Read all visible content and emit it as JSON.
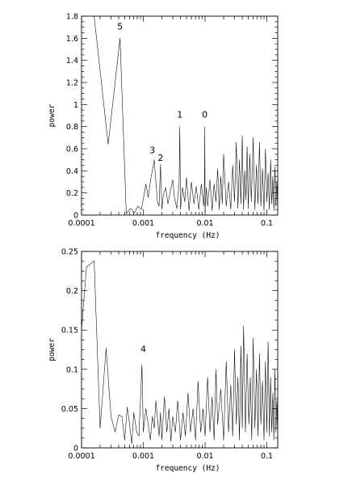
{
  "chart_data": [
    {
      "type": "line",
      "xlabel": "frequency (Hz)",
      "ylabel": "power",
      "xscale": "log",
      "xlim": [
        0.0001,
        0.15
      ],
      "ylim": [
        0,
        1.8
      ],
      "xtick_labels": [
        "0.0001",
        "0.001",
        "0.01",
        "0.1"
      ],
      "ytick_labels": [
        "0",
        "0.2",
        "0.4",
        "0.6",
        "0.8",
        "1",
        "1.2",
        "1.4",
        "1.6",
        "1.8"
      ],
      "grid": false,
      "annotations": [
        {
          "text": "5",
          "x": 0.00042,
          "y": 1.68
        },
        {
          "text": "3",
          "x": 0.0014,
          "y": 0.56
        },
        {
          "text": "2",
          "x": 0.0019,
          "y": 0.49
        },
        {
          "text": "1",
          "x": 0.0039,
          "y": 0.88
        },
        {
          "text": "0",
          "x": 0.0099,
          "y": 0.88
        }
      ],
      "series": [
        {
          "x": [
            0.00016,
            0.00027,
            0.00042,
            0.00053,
            0.00062,
            0.00072,
            0.00082,
            0.00093,
            0.0011,
            0.0012,
            0.0013,
            0.0015,
            0.0016,
            0.0017,
            0.0018,
            0.0019,
            0.002,
            0.0021,
            0.0023,
            0.0025,
            0.0027,
            0.003,
            0.0032,
            0.0035,
            0.0038,
            0.0039,
            0.004,
            0.0043,
            0.0047,
            0.005,
            0.0055,
            0.006,
            0.0066,
            0.0072,
            0.0079,
            0.0087,
            0.0095,
            0.0098,
            0.0099,
            0.01,
            0.0105,
            0.011,
            0.012,
            0.013,
            0.014,
            0.015,
            0.016,
            0.017,
            0.018,
            0.019,
            0.02,
            0.022,
            0.024,
            0.026,
            0.028,
            0.03,
            0.032,
            0.034,
            0.036,
            0.038,
            0.04,
            0.042,
            0.044,
            0.046,
            0.048,
            0.05,
            0.053,
            0.056,
            0.06,
            0.064,
            0.068,
            0.072,
            0.076,
            0.08,
            0.085,
            0.09,
            0.095,
            0.1,
            0.105,
            0.11,
            0.115,
            0.12,
            0.125,
            0.13,
            0.135,
            0.14,
            0.145,
            0.15
          ],
          "y": [
            1.8,
            0.64,
            1.6,
            0.01,
            0.06,
            0.02,
            0.08,
            0.05,
            0.28,
            0.16,
            0.3,
            0.5,
            0.3,
            0.12,
            0.08,
            0.46,
            0.05,
            0.18,
            0.25,
            0.1,
            0.2,
            0.32,
            0.15,
            0.06,
            0.3,
            0.8,
            0.05,
            0.25,
            0.12,
            0.34,
            0.04,
            0.3,
            0.1,
            0.26,
            0.05,
            0.28,
            0.08,
            0.3,
            0.8,
            0.03,
            0.25,
            0.08,
            0.32,
            0.04,
            0.28,
            0.12,
            0.42,
            0.05,
            0.35,
            0.1,
            0.55,
            0.08,
            0.3,
            0.05,
            0.45,
            0.12,
            0.66,
            0.06,
            0.5,
            0.1,
            0.72,
            0.05,
            0.4,
            0.14,
            0.62,
            0.06,
            0.55,
            0.12,
            0.7,
            0.05,
            0.45,
            0.1,
            0.66,
            0.08,
            0.42,
            0.04,
            0.6,
            0.12,
            0.38,
            0.05,
            0.5,
            0.1,
            0.35,
            0.04,
            0.44,
            0.08,
            0.3,
            0.05
          ]
        }
      ]
    },
    {
      "type": "line",
      "xlabel": "frequency (Hz)",
      "ylabel": "power",
      "xscale": "log",
      "xlim": [
        0.0001,
        0.15
      ],
      "ylim": [
        0,
        0.25
      ],
      "xtick_labels": [
        "0.0001",
        "0.001",
        "0.01",
        "0.1"
      ],
      "ytick_labels": [
        "0",
        "0.05",
        "0.1",
        "0.15",
        "0.2",
        "0.25"
      ],
      "grid": false,
      "annotations": [
        {
          "text": "4",
          "x": 0.001,
          "y": 0.122
        }
      ],
      "series": [
        {
          "x": [
            0.0001,
            0.00012,
            0.00016,
            0.0002,
            0.00025,
            0.0003,
            0.00035,
            0.0004,
            0.00045,
            0.0005,
            0.00055,
            0.0006,
            0.00065,
            0.0007,
            0.00078,
            0.00085,
            0.00095,
            0.001,
            0.0011,
            0.0012,
            0.0013,
            0.0014,
            0.0015,
            0.0016,
            0.0018,
            0.0019,
            0.002,
            0.0022,
            0.0024,
            0.0026,
            0.0028,
            0.003,
            0.0033,
            0.0036,
            0.004,
            0.0044,
            0.0048,
            0.0053,
            0.0058,
            0.0064,
            0.007,
            0.0077,
            0.0085,
            0.0093,
            0.01,
            0.011,
            0.012,
            0.013,
            0.014,
            0.015,
            0.016,
            0.018,
            0.02,
            0.022,
            0.024,
            0.026,
            0.028,
            0.03,
            0.032,
            0.034,
            0.036,
            0.038,
            0.04,
            0.042,
            0.045,
            0.048,
            0.051,
            0.054,
            0.057,
            0.06,
            0.064,
            0.068,
            0.072,
            0.076,
            0.08,
            0.085,
            0.09,
            0.095,
            0.1,
            0.105,
            0.11,
            0.115,
            0.12,
            0.125,
            0.13,
            0.135,
            0.14,
            0.145,
            0.15
          ],
          "y": [
            0.15,
            0.23,
            0.238,
            0.025,
            0.127,
            0.04,
            0.02,
            0.042,
            0.04,
            0.01,
            0.052,
            0.03,
            0.005,
            0.045,
            0.02,
            0.015,
            0.106,
            0.02,
            0.05,
            0.03,
            0.01,
            0.04,
            0.025,
            0.06,
            0.015,
            0.045,
            0.01,
            0.065,
            0.02,
            0.05,
            0.008,
            0.04,
            0.02,
            0.06,
            0.01,
            0.045,
            0.015,
            0.07,
            0.02,
            0.05,
            0.01,
            0.085,
            0.02,
            0.05,
            0.015,
            0.09,
            0.02,
            0.065,
            0.01,
            0.1,
            0.03,
            0.075,
            0.01,
            0.11,
            0.02,
            0.08,
            0.015,
            0.125,
            0.03,
            0.09,
            0.01,
            0.13,
            0.025,
            0.155,
            0.02,
            0.12,
            0.03,
            0.09,
            0.01,
            0.14,
            0.025,
            0.1,
            0.015,
            0.12,
            0.03,
            0.085,
            0.01,
            0.11,
            0.02,
            0.135,
            0.015,
            0.09,
            0.02,
            0.07,
            0.01,
            0.1,
            0.02,
            0.06,
            0.01
          ]
        }
      ]
    }
  ]
}
